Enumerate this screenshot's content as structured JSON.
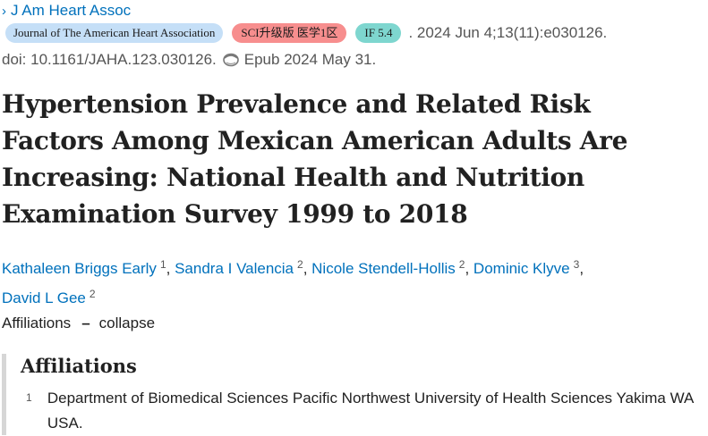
{
  "journal": {
    "link_label": "J Am Heart Assoc"
  },
  "badges": {
    "journal_name": "Journal of The American Heart Association",
    "sci": "SCI升级版 医学1区",
    "impact_factor": "IF 5.4"
  },
  "citation": {
    "date_volume": ". 2024 Jun 4;13(11):e030126.",
    "doi": "doi: 10.1161/JAHA.123.030126.",
    "epub": "Epub 2024 May 31."
  },
  "article": {
    "title": "Hypertension Prevalence and Related Risk Factors Among Mexican American Adults Are Increasing: National Health and Nutrition Examination Survey 1999 to 2018"
  },
  "authors": [
    {
      "name": "Kathaleen Briggs Early",
      "aff": "1"
    },
    {
      "name": "Sandra I Valencia",
      "aff": "2"
    },
    {
      "name": "Nicole Stendell-Hollis",
      "aff": "2"
    },
    {
      "name": "Dominic Klyve",
      "aff": "3"
    },
    {
      "name": "David L Gee",
      "aff": "2"
    }
  ],
  "affiliations_toggle": {
    "label": "Affiliations",
    "action": "collapse"
  },
  "affiliations": {
    "heading": "Affiliations",
    "items": [
      {
        "num": "1",
        "text": "Department of Biomedical Sciences Pacific Northwest University of Health Sciences Yakima WA USA."
      }
    ]
  },
  "colors": {
    "link": "#0071bc",
    "journal_badge": "#c5dff7",
    "sci_badge": "#f78e8e",
    "if_badge": "#7ed6cf"
  },
  "icons": {
    "journal_chevron": "chevron-right-icon",
    "epub": "epub-icon"
  }
}
